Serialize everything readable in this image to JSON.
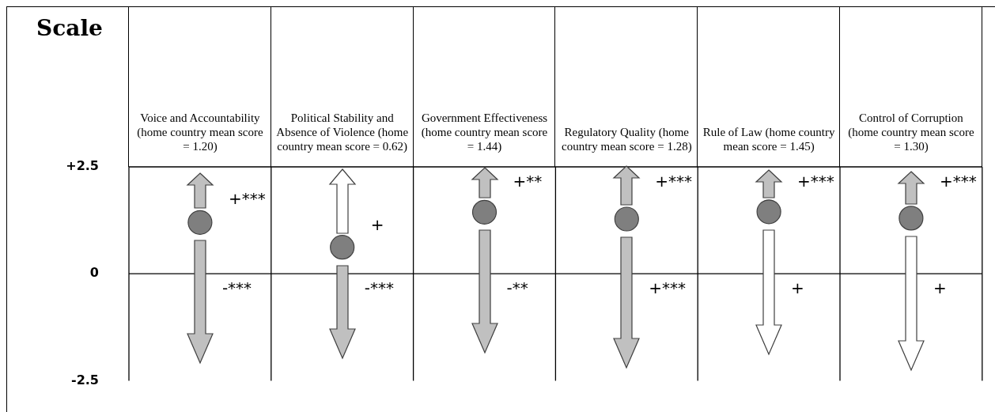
{
  "chart_data": {
    "type": "scatter",
    "ylabel": "Scale",
    "categories": [
      "Voice and Accountability (home country mean score = 1.20)",
      "Political Stability and Absence of Violence (home country mean score = 0.62)",
      "Government Effectiveness (home country mean score = 1.44)",
      "Regulatory Quality (home country mean score = 1.28)",
      "Rule of Law (home country mean score = 1.45)",
      "Control of Corruption (home country mean score = 1.30)"
    ],
    "series": [
      {
        "color": "#7f7f7f",
        "values": [
          1.2,
          0.62,
          1.44,
          1.28,
          1.45,
          1.3
        ]
      }
    ],
    "ylim": [
      -2.5,
      2.5
    ],
    "yticks": [
      {
        "value": 2.5,
        "label": "+2.5"
      },
      0,
      -2.5
    ],
    "ref_lines": [
      {
        "axis": "y",
        "value": 0,
        "color": "#000000"
      }
    ],
    "grid": "x",
    "legend": false,
    "marker": "circle",
    "annotations": [
      "+***",
      "-***",
      "+",
      "-***",
      "+**",
      "-**",
      "+***",
      "+***",
      "+***",
      "+",
      "+***",
      "+"
    ]
  }
}
